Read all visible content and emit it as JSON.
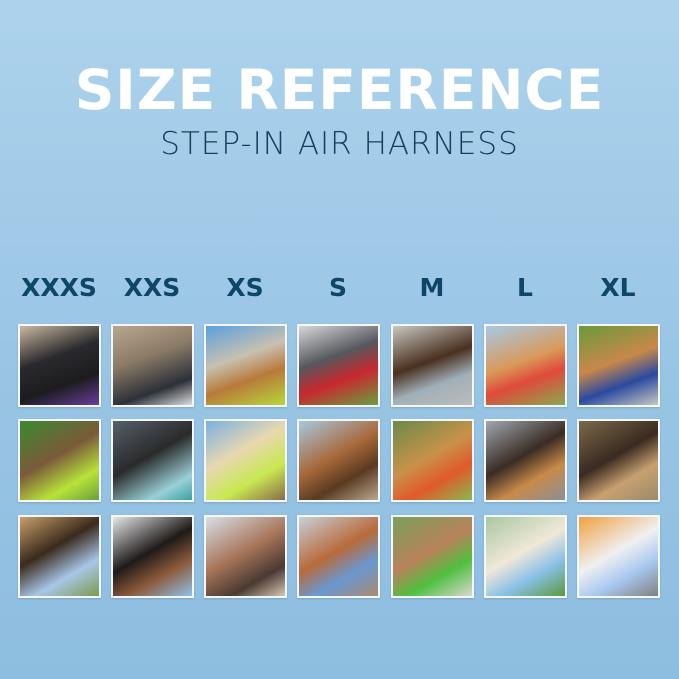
{
  "header": {
    "title": "SIZE REFERENCE",
    "subtitle": "STEP-IN AIR HARNESS"
  },
  "colors": {
    "background": "#9cc7e6",
    "title": "#ffffff",
    "subtitle": "#123f5e",
    "size_label": "#0f4566"
  },
  "sizes": [
    {
      "label": "XXXS"
    },
    {
      "label": "XXS"
    },
    {
      "label": "XS"
    },
    {
      "label": "S"
    },
    {
      "label": "M"
    },
    {
      "label": "L"
    },
    {
      "label": "XL"
    }
  ]
}
